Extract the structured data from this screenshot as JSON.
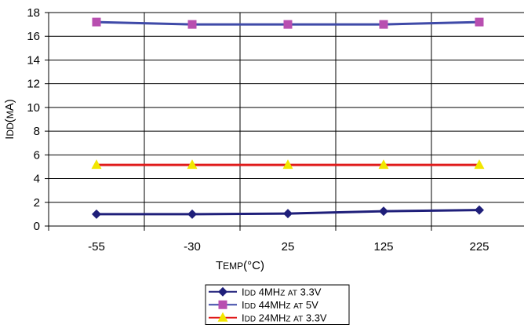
{
  "chart_data": {
    "type": "line",
    "categories": [
      "-55",
      "-30",
      "25",
      "125",
      "225"
    ],
    "xlabel": "Temp(°C)",
    "ylabel": "Idd(mA)",
    "ylim": [
      0,
      18
    ],
    "yticks": [
      0,
      2,
      4,
      6,
      8,
      10,
      12,
      14,
      16,
      18
    ],
    "grid": true,
    "legend_position": "bottom",
    "series": [
      {
        "name": "Idd 4MHz at 3.3V",
        "values": [
          1.0,
          1.0,
          1.05,
          1.25,
          1.35
        ],
        "color": "#1f1f7a",
        "marker": "diamond"
      },
      {
        "name": "Idd 44MHz at 5V",
        "values": [
          17.2,
          17.0,
          17.0,
          17.0,
          17.2
        ],
        "color": "#3f4aa8",
        "marker": "square",
        "marker_color": "#b84fb0"
      },
      {
        "name": "Idd 24MHz at 3.3V",
        "values": [
          5.15,
          5.15,
          5.15,
          5.15,
          5.15
        ],
        "color": "#e01b1b",
        "marker": "triangle",
        "marker_color": "#f2e600"
      }
    ]
  }
}
